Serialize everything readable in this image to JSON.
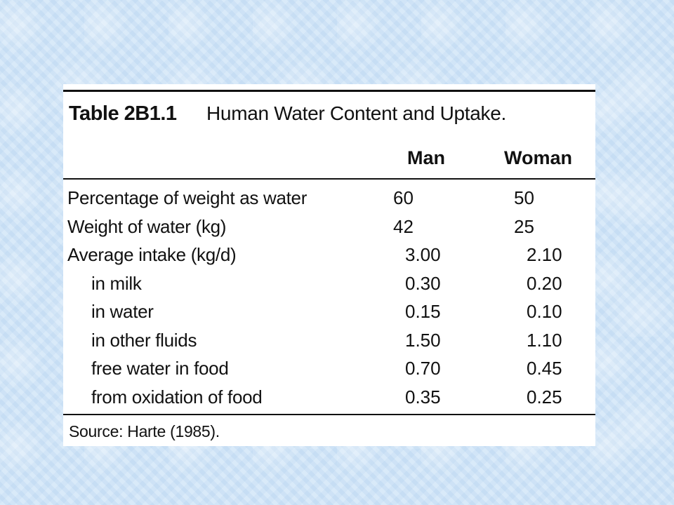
{
  "table": {
    "label": "Table 2B1.1",
    "title": "Human Water Content and Uptake.",
    "columns": [
      "Man",
      "Woman"
    ],
    "rows": [
      {
        "label": "Percentage of weight as water",
        "man": "60",
        "woman": "50"
      },
      {
        "label": "Weight of water (kg)",
        "man": "42",
        "woman": "25"
      },
      {
        "label": "Average intake (kg/d)",
        "man": "3.00",
        "woman": "2.10"
      },
      {
        "label": "in milk",
        "man": "0.30",
        "woman": "0.20"
      },
      {
        "label": "in water",
        "man": "0.15",
        "woman": "0.10"
      },
      {
        "label": "in other fluids",
        "man": "1.50",
        "woman": "1.10"
      },
      {
        "label": "free water in food",
        "man": "0.70",
        "woman": "0.45"
      },
      {
        "label": "from oxidation of food",
        "man": "0.35",
        "woman": "0.25"
      }
    ],
    "source": "Source: Harte (1985)."
  }
}
